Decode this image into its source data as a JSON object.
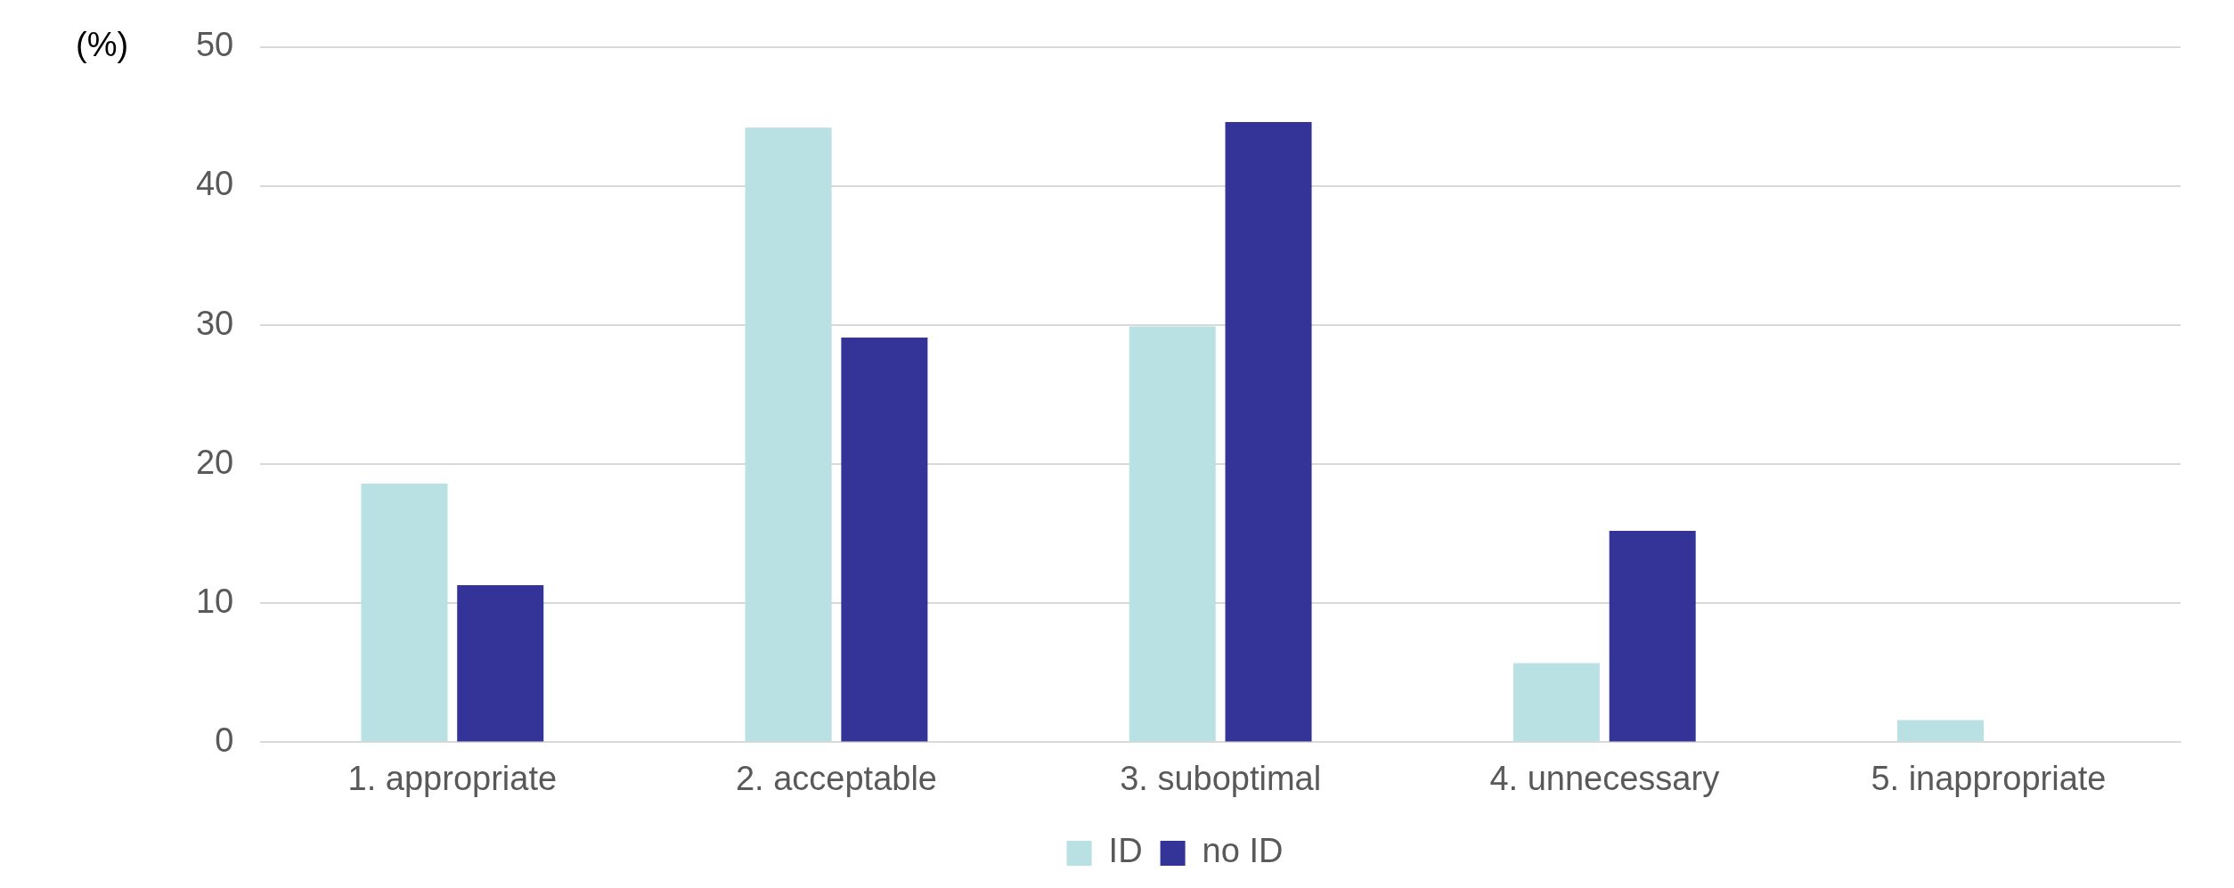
{
  "chart_data": {
    "type": "bar",
    "ylabel": "(%)",
    "categories": [
      "1. appropriate",
      "2. acceptable",
      "3. suboptimal",
      "4. unnecessary",
      "5. inappropriate"
    ],
    "series": [
      {
        "name": "ID",
        "color": "#b9e0e3",
        "values": [
          18.6,
          44.2,
          29.9,
          5.7,
          1.6
        ]
      },
      {
        "name": "no ID",
        "color": "#343397",
        "values": [
          11.3,
          29.1,
          44.6,
          15.2,
          0
        ]
      }
    ],
    "ylim": [
      0,
      50
    ],
    "yticks": [
      0,
      10,
      20,
      30,
      40,
      50
    ],
    "grid": "y",
    "legend": "bottom"
  }
}
